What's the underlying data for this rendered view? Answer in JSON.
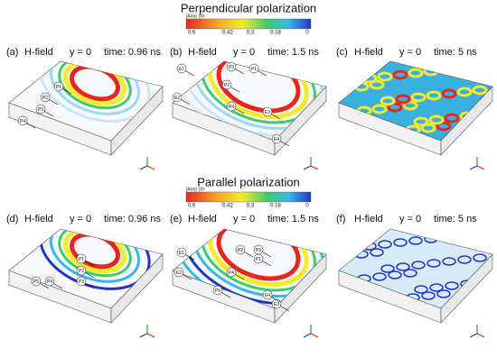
{
  "sections": [
    {
      "title": "Perpendicular polarization",
      "colorbar": {
        "unit": "[A/m]·10⁵",
        "ticks": [
          "0.6",
          "0.42",
          "0.3",
          "0.18",
          "0"
        ]
      },
      "panels": [
        {
          "label": "(a)",
          "field": "H-field",
          "plane": "y = 0",
          "time": "time: 0.96 ns",
          "callouts": [
            "P1",
            "P2",
            "P3",
            "P4"
          ]
        },
        {
          "label": "(b)",
          "field": "H-field",
          "plane": "y = 0",
          "time": "time: 1.5 ns",
          "callouts": [
            "E1",
            "P3",
            "P1",
            "E2",
            "P2",
            "P4",
            "E3",
            "E4"
          ]
        },
        {
          "label": "(c)",
          "field": "H-field",
          "plane": "y = 0",
          "time": "time: 5 ns",
          "callouts": []
        }
      ]
    },
    {
      "title": "Parallel polarization",
      "colorbar": {
        "unit": "[A/m]·10⁵",
        "ticks": [
          "0.6",
          "0.42",
          "0.3",
          "0.18",
          "0"
        ]
      },
      "panels": [
        {
          "label": "(d)",
          "field": "H-field",
          "plane": "y = 0",
          "time": "time: 0.96 ns",
          "callouts": [
            "P1",
            "P2",
            "P3",
            "P4",
            "P5"
          ]
        },
        {
          "label": "(e)",
          "field": "H-field",
          "plane": "y = 0",
          "time": "time: 1.5 ns",
          "callouts": [
            "E1",
            "P2",
            "P3",
            "P1",
            "E2",
            "P4",
            "P5",
            "E3",
            "E4"
          ]
        },
        {
          "label": "(f)",
          "field": "H-field",
          "plane": "y = 0",
          "time": "time: 5 ns",
          "callouts": []
        }
      ]
    }
  ]
}
